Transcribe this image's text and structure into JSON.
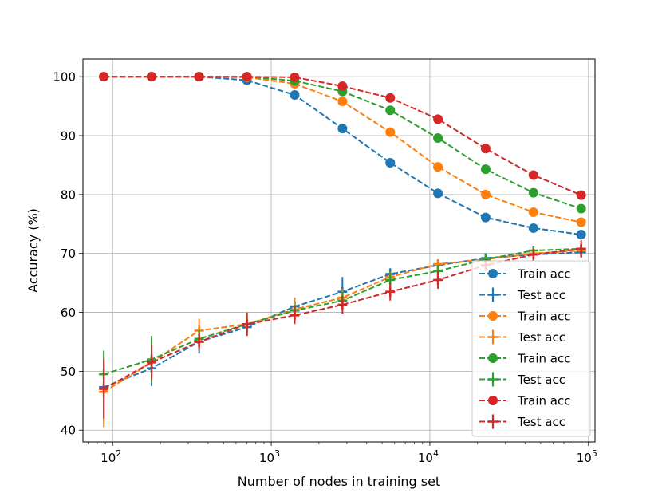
{
  "chart_data": {
    "type": "line",
    "title": "",
    "xlabel": "Number of nodes in training set",
    "ylabel": "Accuracy (%)",
    "xscale": "log",
    "xlim": [
      65,
      110000
    ],
    "ylim": [
      38,
      103
    ],
    "grid": true,
    "legend_position": "lower-right",
    "x_ticks": [
      {
        "value": 100,
        "base": "10",
        "exp": "2"
      },
      {
        "value": 1000,
        "base": "10",
        "exp": "3"
      },
      {
        "value": 10000,
        "base": "10",
        "exp": "4"
      },
      {
        "value": 100000,
        "base": "10",
        "exp": "5"
      }
    ],
    "y_ticks": [
      {
        "value": 40,
        "label": "40"
      },
      {
        "value": 50,
        "label": "50"
      },
      {
        "value": 60,
        "label": "60"
      },
      {
        "value": 70,
        "label": "70"
      },
      {
        "value": 80,
        "label": "80"
      },
      {
        "value": 90,
        "label": "90"
      },
      {
        "value": 100,
        "label": "100"
      }
    ],
    "x": [
      88,
      176,
      351,
      703,
      1406,
      2812,
      5625,
      11250,
      22500,
      45000,
      90000
    ],
    "series": [
      {
        "name": "Train acc",
        "color": "#1f77b4",
        "marker": "circle",
        "values": [
          100,
          100,
          100,
          99.4,
          96.9,
          91.2,
          85.4,
          80.2,
          76.1,
          74.3,
          73.2
        ],
        "errors": []
      },
      {
        "name": "Test acc",
        "color": "#1f77b4",
        "marker": "plus",
        "values": [
          47.3,
          50.5,
          55.0,
          57.5,
          61.0,
          63.5,
          66.5,
          68.0,
          69.2,
          69.8,
          70.2
        ],
        "errors": [
          1.5,
          3.0,
          2.0,
          1.5,
          1.5,
          2.5,
          1.0,
          0.5,
          0.5,
          0.8,
          0.8
        ]
      },
      {
        "name": "Train acc",
        "color": "#ff7f0e",
        "marker": "circle",
        "values": [
          100,
          100,
          100,
          99.9,
          98.8,
          95.8,
          90.6,
          84.7,
          80.0,
          77.0,
          75.3
        ],
        "errors": []
      },
      {
        "name": "Test acc",
        "color": "#ff7f0e",
        "marker": "plus",
        "values": [
          46.5,
          51.5,
          56.9,
          58.0,
          60.5,
          62.5,
          66.0,
          68.2,
          69.0,
          70.0,
          70.5
        ],
        "errors": [
          6.0,
          2.0,
          2.0,
          2.0,
          2.0,
          1.5,
          1.0,
          0.5,
          0.5,
          0.5,
          0.5
        ]
      },
      {
        "name": "Train acc",
        "color": "#2ca02c",
        "marker": "circle",
        "values": [
          100,
          100,
          100,
          100,
          99.3,
          97.5,
          94.3,
          89.6,
          84.3,
          80.3,
          77.6
        ],
        "errors": []
      },
      {
        "name": "Test acc",
        "color": "#2ca02c",
        "marker": "plus",
        "values": [
          49.5,
          52.0,
          55.5,
          58.0,
          60.3,
          62.0,
          65.5,
          67.0,
          69.0,
          70.5,
          70.8
        ],
        "errors": [
          4.0,
          4.0,
          1.5,
          1.5,
          1.0,
          1.5,
          1.5,
          1.0,
          1.0,
          0.5,
          0.5
        ]
      },
      {
        "name": "Train acc",
        "color": "#d62728",
        "marker": "circle",
        "values": [
          100,
          100,
          100,
          100,
          99.9,
          98.4,
          96.4,
          92.8,
          87.8,
          83.3,
          79.9
        ],
        "errors": []
      },
      {
        "name": "Test acc",
        "color": "#d62728",
        "marker": "plus",
        "values": [
          47.0,
          51.5,
          55.0,
          58.0,
          59.5,
          61.3,
          63.5,
          65.5,
          68.0,
          69.8,
          70.8
        ],
        "errors": [
          5.0,
          3.0,
          1.5,
          2.0,
          1.5,
          1.5,
          1.5,
          1.5,
          1.0,
          1.0,
          1.5
        ]
      }
    ]
  }
}
